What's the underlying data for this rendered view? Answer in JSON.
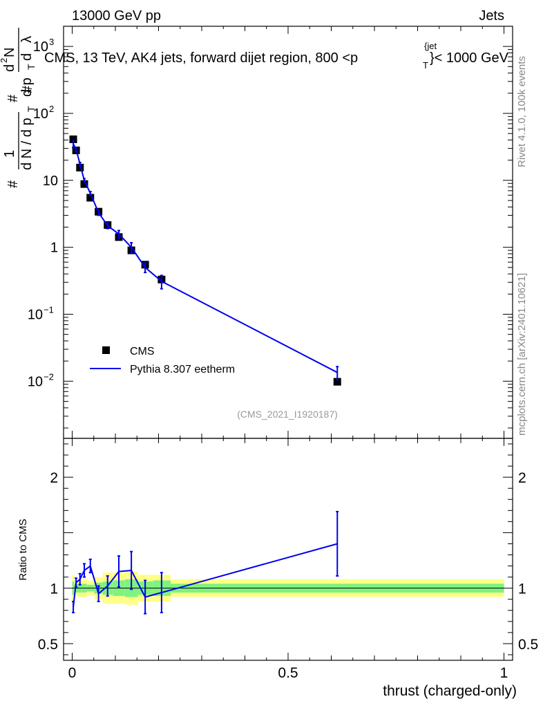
{
  "header": {
    "left": "13000 GeV pp",
    "right": "Jets"
  },
  "side_labels": {
    "rivet": "Rivet 4.1.0,  100k events",
    "mcplots": "mcplots.cern.ch [arXiv:2401.10621]"
  },
  "ylabel_main": {
    "parts": [
      "1",
      "d N / d p",
      "T",
      "#",
      "d",
      "2",
      "N",
      "d p",
      "T",
      "d",
      "λ",
      "#",
      "#"
    ]
  },
  "ylabel_ratio": "Ratio to CMS",
  "analysis_id": "(CMS_2021_I1920187)",
  "colors": {
    "data": "#000000",
    "mc": "#0000ee",
    "band_inner": "#7ff27f",
    "band_outer": "#ffff88"
  },
  "chart_data": {
    "type": "scatter",
    "title_parts": [
      "CMS, 13 TeV, AK4 jets, forward dijet region, 800 <p",
      "T",
      "{jet",
      "}< 1000 GeV"
    ],
    "xlabel": "thrust (charged-only)",
    "xlim": [
      -0.02,
      1.02
    ],
    "main": {
      "yscale": "log",
      "ylim": [
        0.0014,
        2000
      ],
      "yticks": [
        {
          "value": 1000,
          "base": "10",
          "exp": "3"
        },
        {
          "value": 100,
          "base": "10",
          "exp": "2"
        },
        {
          "value": 10,
          "base": "10",
          "exp": ""
        },
        {
          "value": 1,
          "base": "1",
          "exp": ""
        },
        {
          "value": 0.1,
          "base": "10",
          "exp": "−1"
        },
        {
          "value": 0.01,
          "base": "10",
          "exp": "−2"
        }
      ]
    },
    "ratio": {
      "ylim": [
        0.35,
        2.35
      ],
      "yticks": [
        {
          "value": 0.5,
          "label": "0.5"
        },
        {
          "value": 1,
          "label": "1"
        },
        {
          "value": 2,
          "label": "2"
        }
      ]
    },
    "xticks": [
      {
        "value": 0,
        "label": "0"
      },
      {
        "value": 0.5,
        "label": "0.5"
      },
      {
        "value": 1,
        "label": "1"
      }
    ],
    "legend": {
      "position": "lower-left",
      "entries": [
        "CMS",
        "Pythia 8.307 eetherm"
      ]
    },
    "series": [
      {
        "name": "CMS",
        "kind": "markers",
        "x": [
          0.0025,
          0.009,
          0.018,
          0.028,
          0.042,
          0.061,
          0.082,
          0.108,
          0.137,
          0.169,
          0.207,
          0.614
        ],
        "y": [
          41,
          28,
          15.5,
          8.8,
          5.5,
          3.4,
          2.15,
          1.42,
          0.9,
          0.55,
          0.33,
          0.0098
        ],
        "xlow": [
          0.0,
          0.005,
          0.013,
          0.023,
          0.034,
          0.051,
          0.071,
          0.094,
          0.122,
          0.152,
          0.187,
          0.228
        ],
        "xhigh": [
          0.005,
          0.013,
          0.023,
          0.034,
          0.051,
          0.071,
          0.094,
          0.122,
          0.152,
          0.187,
          0.228,
          1.0
        ],
        "band_inner": [
          0.06,
          0.04,
          0.04,
          0.04,
          0.03,
          0.05,
          0.06,
          0.07,
          0.08,
          0.06,
          0.07,
          0.04
        ],
        "band_outer": [
          0.12,
          0.07,
          0.08,
          0.08,
          0.07,
          0.1,
          0.14,
          0.14,
          0.15,
          0.12,
          0.12,
          0.08
        ]
      },
      {
        "name": "Pythia 8.307 eetherm",
        "kind": "line",
        "x": [
          0.0025,
          0.009,
          0.018,
          0.028,
          0.042,
          0.061,
          0.082,
          0.108,
          0.137,
          0.169,
          0.207,
          0.614
        ],
        "y": [
          35,
          29,
          17.5,
          10.0,
          6.4,
          3.3,
          2.1,
          1.58,
          1.0,
          0.5,
          0.31,
          0.0135
        ],
        "yerr": [
          4,
          2,
          1.0,
          0.6,
          0.4,
          0.3,
          0.2,
          0.2,
          0.17,
          0.08,
          0.07,
          0.003
        ],
        "ratio": [
          0.83,
          1.05,
          1.08,
          1.16,
          1.2,
          0.95,
          1.02,
          1.15,
          1.16,
          0.92,
          0.96,
          1.4
        ],
        "ratio_err": [
          0.05,
          0.04,
          0.05,
          0.06,
          0.06,
          0.07,
          0.09,
          0.14,
          0.17,
          0.15,
          0.18,
          0.29
        ]
      }
    ]
  }
}
